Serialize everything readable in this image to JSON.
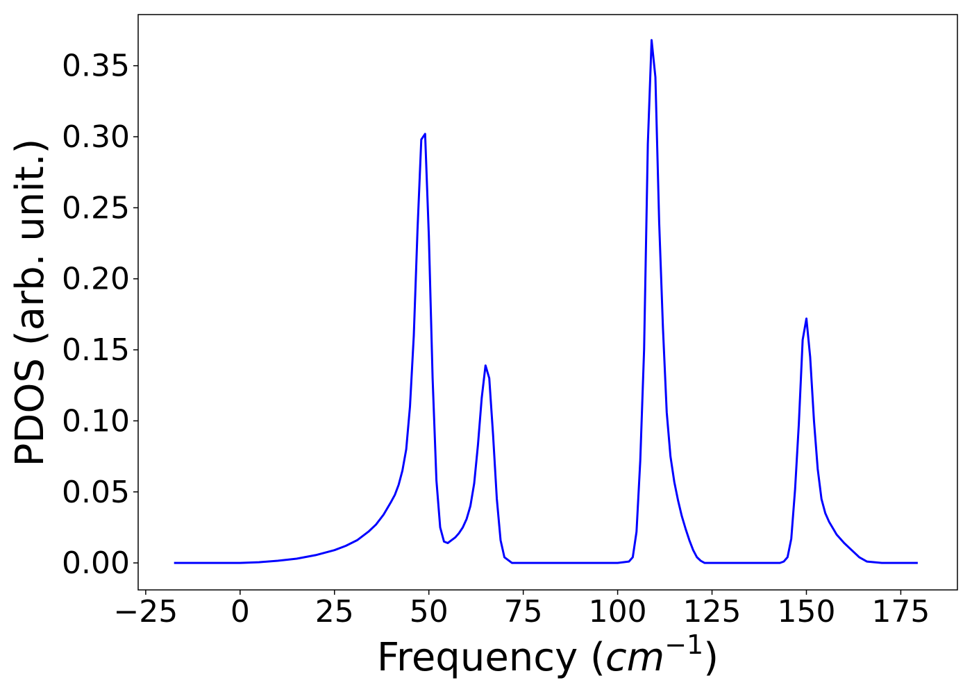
{
  "chart_data": {
    "type": "line",
    "title": "",
    "xlabel": "Frequency",
    "xlabel_unit_base": "cm",
    "xlabel_unit_exp": "−1",
    "ylabel": "PDOS (arb. unit.)",
    "xlim": [
      -27,
      190
    ],
    "ylim": [
      -0.019,
      0.386
    ],
    "xticks": [
      -25,
      0,
      25,
      50,
      75,
      100,
      125,
      150,
      175
    ],
    "xtick_labels": [
      "−25",
      "0",
      "25",
      "50",
      "75",
      "100",
      "125",
      "150",
      "175"
    ],
    "yticks": [
      0.0,
      0.05,
      0.1,
      0.15,
      0.2,
      0.25,
      0.3,
      0.35
    ],
    "ytick_labels": [
      "0.00",
      "0.05",
      "0.10",
      "0.15",
      "0.20",
      "0.25",
      "0.30",
      "0.35"
    ],
    "grid": false,
    "series": [
      {
        "color": "#0000ff",
        "x": [
          -17.5,
          -15,
          -10,
          -5,
          0,
          5,
          10,
          15,
          20,
          25,
          28,
          31,
          34,
          36,
          38,
          40,
          41,
          42,
          43,
          44,
          45,
          46,
          47,
          48,
          49,
          50,
          51,
          52,
          53,
          54,
          55,
          56,
          57,
          58,
          59,
          60,
          61,
          62,
          63,
          64,
          65,
          66,
          67,
          68,
          69,
          70,
          72,
          75,
          80,
          90,
          100,
          103,
          104,
          105,
          106,
          107,
          108,
          109,
          110,
          111,
          112,
          113,
          114,
          115,
          116,
          117,
          118,
          119,
          120,
          121,
          122,
          123,
          125,
          130,
          140,
          143,
          144,
          145,
          146,
          147,
          148,
          149,
          150,
          151,
          152,
          153,
          154,
          155,
          156,
          158,
          160,
          162,
          164,
          166,
          170,
          175,
          179.5
        ],
        "y": [
          0.0,
          0.0,
          0.0,
          0.0,
          0.0,
          0.0005,
          0.0015,
          0.003,
          0.0055,
          0.009,
          0.012,
          0.016,
          0.022,
          0.027,
          0.034,
          0.043,
          0.048,
          0.055,
          0.065,
          0.08,
          0.11,
          0.16,
          0.235,
          0.298,
          0.302,
          0.23,
          0.13,
          0.058,
          0.025,
          0.015,
          0.014,
          0.016,
          0.018,
          0.021,
          0.025,
          0.031,
          0.04,
          0.056,
          0.083,
          0.116,
          0.139,
          0.13,
          0.09,
          0.045,
          0.016,
          0.004,
          0.0,
          0.0,
          0.0,
          0.0,
          0.0,
          0.001,
          0.004,
          0.022,
          0.072,
          0.15,
          0.295,
          0.368,
          0.342,
          0.24,
          0.165,
          0.106,
          0.075,
          0.057,
          0.044,
          0.033,
          0.024,
          0.016,
          0.009,
          0.004,
          0.0015,
          0.0,
          0.0,
          0.0,
          0.0,
          0.0,
          0.001,
          0.004,
          0.017,
          0.052,
          0.098,
          0.157,
          0.172,
          0.145,
          0.1,
          0.066,
          0.045,
          0.035,
          0.029,
          0.02,
          0.014,
          0.009,
          0.004,
          0.001,
          0.0,
          0.0,
          0.0
        ]
      }
    ]
  }
}
